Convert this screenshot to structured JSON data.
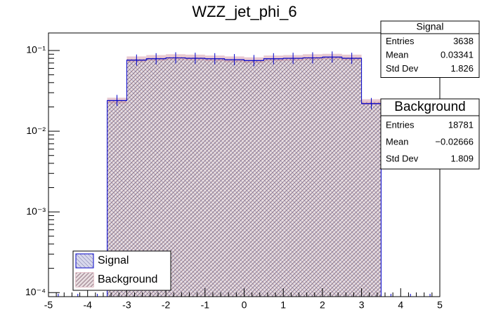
{
  "chart_data": {
    "type": "histogram",
    "title": "WZZ_jet_phi_6",
    "bins": [
      -5,
      -4.5,
      -4,
      -3.5,
      -3,
      -2.5,
      -2,
      -1.5,
      -1,
      -0.5,
      0,
      0.5,
      1,
      1.5,
      2,
      2.5,
      3,
      3.5,
      4,
      4.5,
      5
    ],
    "series": [
      {
        "name": "Signal",
        "color": "#0000cc",
        "values": [
          0,
          0,
          0,
          0.024,
          0.076,
          0.079,
          0.081,
          0.08,
          0.079,
          0.077,
          0.075,
          0.079,
          0.08,
          0.081,
          0.083,
          0.08,
          0.022,
          0,
          0,
          0
        ]
      },
      {
        "name": "Background",
        "color": "#cc8899",
        "values": [
          0,
          0,
          0,
          0.024,
          0.078,
          0.081,
          0.083,
          0.082,
          0.08,
          0.078,
          0.076,
          0.08,
          0.081,
          0.083,
          0.084,
          0.082,
          0.023,
          0,
          0,
          0
        ]
      }
    ],
    "xlim": [
      -5,
      5
    ],
    "xticks": [
      -5,
      -4,
      -3,
      -2,
      -1,
      0,
      1,
      2,
      3,
      4,
      5
    ],
    "ylim": [
      8.91e-05,
      0.165
    ],
    "yticks": [
      {
        "value": 0.0001,
        "label": "10⁻⁴"
      },
      {
        "value": 0.001,
        "label": "10⁻³"
      },
      {
        "value": 0.01,
        "label": "10⁻²"
      },
      {
        "value": 0.1,
        "label": "10⁻¹"
      }
    ],
    "log_y": true,
    "stats": [
      {
        "name": "Signal",
        "rows": [
          [
            "Entries",
            "3638"
          ],
          [
            "Mean",
            "0.03341"
          ],
          [
            "Std Dev",
            "1.826"
          ]
        ]
      },
      {
        "name": "Background",
        "rows": [
          [
            "Entries",
            "18781"
          ],
          [
            "Mean",
            "−0.02666"
          ],
          [
            "Std Dev",
            "1.809"
          ]
        ]
      }
    ]
  }
}
